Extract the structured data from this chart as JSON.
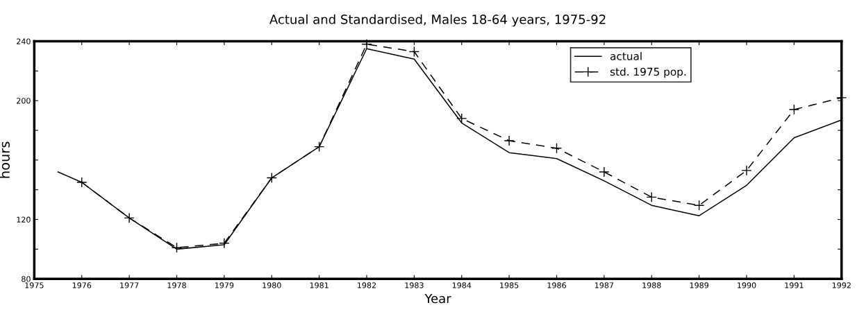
{
  "chart_data": {
    "type": "line",
    "title": "Actual and Standardised, Males 18-64 years, 1975-92",
    "xlabel": "Year",
    "ylabel": "hours",
    "xlim": [
      1975,
      1992
    ],
    "xticks": [
      1975,
      1976,
      1977,
      1978,
      1979,
      1980,
      1981,
      1982,
      1983,
      1984,
      1985,
      1986,
      1987,
      1988,
      1989,
      1990,
      1991,
      1992
    ],
    "ylim": [
      80,
      240
    ],
    "yticks": [
      80,
      {
        "value": 100,
        "label": null
      },
      120,
      {
        "value": 140,
        "label": null
      },
      {
        "value": 160,
        "label": null
      },
      {
        "value": 180,
        "label": null
      },
      200,
      {
        "value": 220,
        "label": null
      },
      240
    ],
    "grid": false,
    "legend": "top right",
    "series": [
      {
        "name": "actual",
        "color": "#000000",
        "line_style": "solid",
        "marker": "none",
        "x": [
          1975.5,
          1976,
          1977,
          1978,
          1979,
          1980,
          1981,
          1982,
          1983,
          1984,
          1985,
          1986,
          1987,
          1988,
          1989,
          1990,
          1991,
          1992
        ],
        "values": [
          152,
          145,
          121,
          100,
          103,
          148,
          169,
          235,
          228,
          185,
          165,
          161,
          146,
          129.5,
          122.5,
          143,
          175,
          187
        ]
      },
      {
        "name": "std. 1975 pop.",
        "color": "#000000",
        "line_style": "dashed",
        "marker": "cross",
        "x": [
          1976,
          1977,
          1978,
          1979,
          1980,
          1981,
          1982,
          1983,
          1984,
          1985,
          1986,
          1987,
          1988,
          1989,
          1990,
          1991,
          1992
        ],
        "values": [
          145,
          121,
          101,
          104,
          148,
          169,
          238,
          233,
          188,
          173,
          168,
          152,
          135,
          129.5,
          153,
          194,
          202
        ]
      }
    ]
  }
}
